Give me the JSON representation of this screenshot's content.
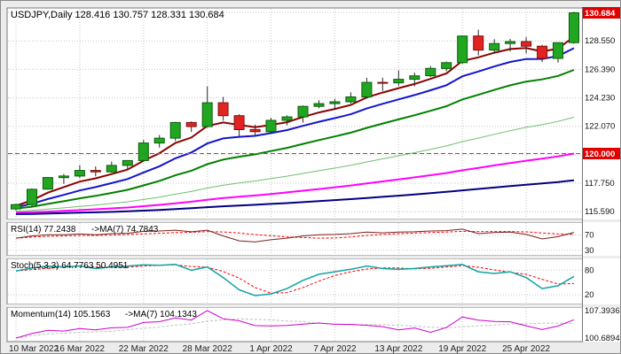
{
  "colors": {
    "frame": "#ececec",
    "panel_bg": "#ffffff",
    "panel_border": "#7a7a7a",
    "grid": "#c6c6c6",
    "wick": "#2a2a2a",
    "bull": "#21a621",
    "bull_border": "#0b5e0b",
    "bear": "#e32222",
    "bear_border": "#7e0f0f",
    "badge": "#e00000",
    "badge_text": "#ffffff",
    "level_red": "#ff2020"
  },
  "chart_data": {
    "type": "candlestick",
    "symbol": "USDJPY",
    "timeframe": "Daily",
    "header": "USDJPY,Daily 128.416 130.757 128.331 130.684",
    "ohlc": {
      "open": "128.416",
      "high": "130.757",
      "low": "128.331",
      "close": "130.684"
    },
    "current_price": {
      "v": 130.684,
      "t": "130.684"
    },
    "level_line": {
      "v": 120.0,
      "t": "120.000"
    },
    "price_axis": {
      "min": 115.0,
      "max": 131.05,
      "labels": [
        {
          "v": 128.55,
          "t": "128.550"
        },
        {
          "v": 126.39,
          "t": "126.390"
        },
        {
          "v": 124.23,
          "t": "124.230"
        },
        {
          "v": 122.07,
          "t": "122.070"
        },
        {
          "v": 117.75,
          "t": "117.750"
        },
        {
          "v": 115.59,
          "t": "115.590"
        }
      ],
      "gridlines": [
        130.71,
        128.55,
        126.39,
        124.23,
        122.07,
        119.91,
        117.75,
        115.59
      ]
    },
    "x_ticks": [
      {
        "i": 0,
        "t": "10 Mar 2022"
      },
      {
        "i": 4,
        "t": "16 Mar 2022"
      },
      {
        "i": 8,
        "t": "22 Mar 2022"
      },
      {
        "i": 12,
        "t": "28 Mar 2022"
      },
      {
        "i": 16,
        "t": "1 Apr 2022"
      },
      {
        "i": 20,
        "t": "7 Apr 2022"
      },
      {
        "i": 24,
        "t": "13 Apr 2022"
      },
      {
        "i": 28,
        "t": "19 Apr 2022"
      },
      {
        "i": 32,
        "t": "25 Apr 2022"
      }
    ],
    "candles": [
      [
        115.8,
        116.2,
        115.67,
        116.13
      ],
      [
        116.13,
        117.36,
        115.97,
        117.29
      ],
      [
        117.3,
        118.22,
        117.27,
        118.18
      ],
      [
        118.18,
        118.45,
        117.7,
        118.3
      ],
      [
        118.3,
        119.12,
        118.15,
        118.72
      ],
      [
        118.72,
        119.03,
        118.28,
        118.61
      ],
      [
        118.61,
        119.4,
        118.55,
        119.1
      ],
      [
        119.1,
        119.49,
        118.78,
        119.47
      ],
      [
        119.47,
        121.03,
        119.4,
        120.8
      ],
      [
        120.8,
        121.41,
        120.45,
        121.17
      ],
      [
        121.17,
        122.41,
        120.95,
        122.36
      ],
      [
        122.36,
        122.44,
        121.65,
        122.05
      ],
      [
        122.05,
        125.1,
        121.97,
        123.86
      ],
      [
        123.86,
        124.3,
        122.5,
        122.88
      ],
      [
        122.88,
        122.99,
        121.31,
        121.82
      ],
      [
        121.82,
        122.2,
        121.34,
        121.66
      ],
      [
        121.66,
        122.7,
        121.55,
        122.52
      ],
      [
        122.52,
        122.9,
        122.15,
        122.78
      ],
      [
        122.78,
        123.65,
        122.35,
        123.58
      ],
      [
        123.58,
        124.05,
        123.45,
        123.79
      ],
      [
        123.79,
        124.15,
        123.35,
        123.93
      ],
      [
        123.93,
        124.65,
        123.8,
        124.3
      ],
      [
        124.3,
        125.75,
        124.18,
        125.4
      ],
      [
        125.4,
        125.76,
        124.75,
        125.37
      ],
      [
        125.37,
        126.3,
        125.15,
        125.64
      ],
      [
        125.64,
        126.15,
        125.1,
        125.9
      ],
      [
        125.9,
        126.65,
        125.8,
        126.46
      ],
      [
        126.46,
        126.98,
        126.25,
        126.9
      ],
      [
        126.9,
        128.97,
        126.8,
        128.92
      ],
      [
        128.92,
        129.4,
        127.45,
        127.85
      ],
      [
        127.85,
        128.68,
        127.6,
        128.35
      ],
      [
        128.35,
        128.7,
        127.75,
        128.5
      ],
      [
        128.5,
        128.85,
        127.6,
        128.15
      ],
      [
        128.15,
        128.25,
        126.95,
        127.22
      ],
      [
        127.22,
        128.45,
        126.9,
        128.41
      ],
      [
        128.42,
        130.76,
        128.33,
        130.68
      ]
    ],
    "overlays": [
      {
        "name": "ma-5",
        "period": 5,
        "seed": 116.0,
        "color": "#8b0000",
        "width": 2
      },
      {
        "name": "ma-10",
        "period": 10,
        "seed": 115.9,
        "color": "#1414cc",
        "width": 2
      },
      {
        "name": "ma-20",
        "period": 20,
        "seed": 115.8,
        "color": "#008000",
        "width": 2
      },
      {
        "name": "ma-50",
        "period": 50,
        "seed": 115.6,
        "color": "#6fbf6f",
        "width": 1
      },
      {
        "name": "ma-100",
        "period": 100,
        "seed": 115.5,
        "color": "#ff00ff",
        "width": 2
      },
      {
        "name": "ma-200",
        "period": 200,
        "seed": 115.4,
        "color": "#000080",
        "width": 2
      }
    ],
    "panels": [
      {
        "id": "rsi",
        "label": "RSI(14) 77.2438",
        "ma_label": "->MA(7) 74.7843",
        "color": "#7b2020",
        "width": 1,
        "signal": {
          "period": 7,
          "color": "#ff0000"
        },
        "range": [
          25,
          95
        ],
        "level_lines": true,
        "axis": [
          {
            "v": 70,
            "t": "70"
          },
          {
            "v": 30,
            "t": "30"
          }
        ],
        "values": [
          62,
          68,
          71,
          71,
          73,
          71,
          74,
          75,
          80,
          81,
          83,
          79,
          83,
          68,
          55,
          52,
          58,
          62,
          68,
          71,
          72,
          74,
          78,
          76,
          78,
          79,
          81,
          82,
          86,
          74,
          77,
          78,
          72,
          60,
          66,
          77.24
        ]
      },
      {
        "id": "stoch",
        "label": "Stoch(5,3,3) 64.7763 50.4951",
        "ma_label": "",
        "color": "#11a3a3",
        "width": 1.5,
        "signal": {
          "period": 3,
          "color": "#ff0000"
        },
        "range": [
          5,
          100
        ],
        "level_lines": true,
        "axis": [
          {
            "v": 80,
            "t": "80"
          },
          {
            "v": 20,
            "t": "20"
          }
        ],
        "values": [
          78,
          85,
          90,
          88,
          90,
          84,
          88,
          90,
          93,
          92,
          94,
          80,
          88,
          62,
          32,
          18,
          22,
          35,
          55,
          70,
          76,
          82,
          90,
          84,
          82,
          84,
          88,
          91,
          94,
          76,
          72,
          76,
          62,
          35,
          42,
          64.78
        ]
      },
      {
        "id": "mom",
        "label": "Momentum(14) 105.1563",
        "ma_label": "->MA(7) 104.1343",
        "color": "#cc00cc",
        "width": 1,
        "signal": {
          "period": 7,
          "color": "#bfbfbf"
        },
        "range": [
          100.6894,
          107.3936
        ],
        "level_lines": false,
        "axis": [
          {
            "v": 107.3936,
            "t": "107.3936"
          },
          {
            "v": 100.6894,
            "t": "100.6894"
          }
        ],
        "values": [
          100.69,
          101.8,
          102.6,
          102.4,
          103.0,
          102.7,
          103.2,
          103.3,
          104.5,
          104.7,
          105.6,
          105.1,
          107.39,
          105.4,
          104.9,
          103.73,
          103.67,
          103.79,
          104.09,
          104.37,
          104.06,
          104.04,
          103.81,
          103.47,
          102.68,
          103.15,
          102.1,
          103.27,
          105.83,
          105.09,
          104.76,
          104.66,
          103.7,
          102.77,
          103.62,
          105.16
        ]
      }
    ]
  }
}
